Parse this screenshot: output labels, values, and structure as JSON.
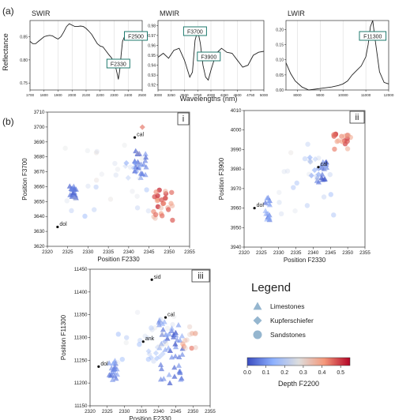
{
  "figure": {
    "panel_a_label": "(a)",
    "panel_b_label": "(b)",
    "a_ylabel": "Reflectance",
    "a_xlabel": "Wavelengths (nm)"
  },
  "legend": {
    "title": "Legend",
    "items": [
      {
        "label": "Limestones",
        "shape": "triangle"
      },
      {
        "label": "Kupferschiefer",
        "shape": "diamond"
      },
      {
        "label": "Sandstones",
        "shape": "circle"
      }
    ]
  },
  "colorbar": {
    "label": "Depth F2200",
    "ticks": [
      "0.0",
      "0.1",
      "0.2",
      "0.3",
      "0.4",
      "0.5"
    ],
    "min": 0.0,
    "max": 0.55,
    "colors": [
      "#3a4cc0",
      "#8db0fe",
      "#dddddd",
      "#f4987a",
      "#b40426"
    ]
  },
  "chart_data": [
    {
      "type": "line",
      "title": "SWIR",
      "xlim": [
        1700,
        2500
      ],
      "ylim": [
        0.735,
        0.885
      ],
      "xticks": [
        "1700",
        "1800",
        "1900",
        "2000",
        "2100",
        "2200",
        "2300",
        "2400",
        "2500"
      ],
      "yticks": [
        "0.75",
        "0.80",
        "0.85"
      ],
      "x": [
        1700,
        1720,
        1740,
        1760,
        1780,
        1800,
        1820,
        1840,
        1860,
        1880,
        1900,
        1920,
        1940,
        1960,
        1980,
        2000,
        2020,
        2040,
        2060,
        2080,
        2100,
        2120,
        2140,
        2160,
        2180,
        2200,
        2220,
        2240,
        2260,
        2280,
        2300,
        2310,
        2320,
        2330,
        2340,
        2350,
        2360,
        2380,
        2400,
        2420,
        2440,
        2460,
        2480,
        2500
      ],
      "y": [
        0.84,
        0.835,
        0.835,
        0.84,
        0.845,
        0.85,
        0.852,
        0.853,
        0.852,
        0.848,
        0.845,
        0.85,
        0.86,
        0.872,
        0.878,
        0.875,
        0.872,
        0.872,
        0.873,
        0.872,
        0.868,
        0.862,
        0.855,
        0.845,
        0.835,
        0.83,
        0.828,
        0.82,
        0.812,
        0.805,
        0.795,
        0.785,
        0.772,
        0.758,
        0.778,
        0.812,
        0.84,
        0.855,
        0.856,
        0.854,
        0.85,
        0.846,
        0.845,
        0.848
      ],
      "annotations": [
        {
          "label": "F2330",
          "x": 2330
        },
        {
          "label": "F2500",
          "x": 2500
        }
      ]
    },
    {
      "type": "line",
      "title": "MWIR",
      "xlim": [
        3000,
        5000
      ],
      "ylim": [
        0.915,
        0.985
      ],
      "xticks": [
        "3000",
        "3250",
        "3500",
        "3750",
        "4000",
        "4250",
        "4500",
        "4750",
        "5000"
      ],
      "yticks": [
        "0.92",
        "0.93",
        "0.94",
        "0.95",
        "0.96",
        "0.97",
        "0.98"
      ],
      "x": [
        3000,
        3100,
        3200,
        3300,
        3400,
        3500,
        3600,
        3650,
        3700,
        3750,
        3800,
        3850,
        3900,
        3950,
        4000,
        4100,
        4200,
        4300,
        4400,
        4500,
        4600,
        4700,
        4800,
        4900,
        5000
      ],
      "y": [
        0.948,
        0.952,
        0.947,
        0.955,
        0.957,
        0.945,
        0.928,
        0.933,
        0.965,
        0.975,
        0.962,
        0.94,
        0.928,
        0.925,
        0.935,
        0.952,
        0.957,
        0.953,
        0.952,
        0.945,
        0.938,
        0.94,
        0.95,
        0.953,
        0.954
      ],
      "annotations": [
        {
          "label": "F3700",
          "x": 3700
        },
        {
          "label": "F3900",
          "x": 3900
        }
      ]
    },
    {
      "type": "line",
      "title": "LWIR",
      "xlim": [
        7500,
        12000
      ],
      "ylim": [
        0.0,
        0.23
      ],
      "xticks": [
        "8000",
        "9000",
        "10000",
        "11000",
        "12000"
      ],
      "yticks": [
        "0.00",
        "0.05",
        "0.10",
        "0.15",
        "0.20"
      ],
      "x": [
        7500,
        7700,
        7900,
        8200,
        8500,
        9000,
        9500,
        9800,
        10000,
        10200,
        10400,
        10600,
        10800,
        11000,
        11100,
        11200,
        11300,
        11400,
        11600,
        11800,
        12000
      ],
      "y": [
        0.09,
        0.055,
        0.03,
        0.01,
        0.0,
        0.005,
        0.01,
        0.015,
        0.02,
        0.03,
        0.05,
        0.065,
        0.08,
        0.11,
        0.15,
        0.21,
        0.23,
        0.17,
        0.06,
        0.025,
        0.02
      ],
      "annotations": [
        {
          "label": "F11300",
          "x": 11300
        }
      ]
    },
    {
      "type": "scatter",
      "panel": "i",
      "xlabel": "Position F2330",
      "ylabel": "Position F3700",
      "xlim": [
        2320,
        2355
      ],
      "ylim": [
        3620,
        3710
      ],
      "xticks": [
        "2320",
        "2325",
        "2330",
        "2335",
        "2340",
        "2345",
        "2350",
        "2355"
      ],
      "yticks": [
        "3620",
        "3630",
        "3640",
        "3650",
        "3660",
        "3670",
        "3680",
        "3690",
        "3700",
        "3710"
      ],
      "reference_points": [
        {
          "label": "cal",
          "x": 2341.5,
          "y": 3693
        },
        {
          "label": "dol",
          "x": 2322.5,
          "y": 3633
        }
      ],
      "groups": [
        {
          "name": "Limestones",
          "shape": "triangle",
          "x_range": [
            2325.5,
            2327.2
          ],
          "y_range": [
            3652,
            3661
          ],
          "depth_range": [
            0.02,
            0.08
          ],
          "count": 18
        },
        {
          "name": "Limestones",
          "shape": "triangle",
          "x_range": [
            2341.5,
            2344.5
          ],
          "y_range": [
            3666,
            3684
          ],
          "depth_range": [
            0.02,
            0.1
          ],
          "count": 22
        },
        {
          "name": "Kupferschiefer",
          "shape": "diamond",
          "x_range": [
            2339,
            2343
          ],
          "y_range": [
            3663,
            3677
          ],
          "depth_range": [
            0.1,
            0.25
          ],
          "count": 10
        },
        {
          "name": "Kupferschiefer",
          "shape": "diamond",
          "x_range": [
            2343,
            2344.5
          ],
          "y_range": [
            3697,
            3701
          ],
          "depth_range": [
            0.4,
            0.45
          ],
          "count": 1
        },
        {
          "name": "Sandstones",
          "shape": "circle",
          "x_range": [
            2346,
            2351
          ],
          "y_range": [
            3637,
            3658
          ],
          "depth_range": [
            0.35,
            0.5
          ],
          "count": 28
        },
        {
          "name": "Sandstones",
          "shape": "circle",
          "x_range": [
            2322,
            2345
          ],
          "y_range": [
            3640,
            3690
          ],
          "depth_range": [
            0.15,
            0.3
          ],
          "count": 26
        }
      ]
    },
    {
      "type": "scatter",
      "panel": "ii",
      "xlabel": "Position F2330",
      "ylabel": "Position F3900",
      "xlim": [
        2320,
        2355
      ],
      "ylim": [
        3940,
        4010
      ],
      "xticks": [
        "2320",
        "2325",
        "2330",
        "2335",
        "2340",
        "2345",
        "2350",
        "2355"
      ],
      "yticks": [
        "3940",
        "3950",
        "3960",
        "3970",
        "3980",
        "3990",
        "4000",
        "4010"
      ],
      "reference_points": [
        {
          "label": "cal",
          "x": 2341.5,
          "y": 3981
        },
        {
          "label": "dol",
          "x": 2323,
          "y": 3960
        }
      ],
      "groups": [
        {
          "name": "Limestones",
          "shape": "triangle",
          "x_range": [
            2326,
            2327.5
          ],
          "y_range": [
            3954,
            3968
          ],
          "depth_range": [
            0.05,
            0.15
          ],
          "count": 16
        },
        {
          "name": "Limestones",
          "shape": "triangle",
          "x_range": [
            2341,
            2344
          ],
          "y_range": [
            3973,
            3984
          ],
          "depth_range": [
            0.02,
            0.1
          ],
          "count": 18
        },
        {
          "name": "Kupferschiefer",
          "shape": "diamond",
          "x_range": [
            2339,
            2343
          ],
          "y_range": [
            3976,
            3986
          ],
          "depth_range": [
            0.1,
            0.2
          ],
          "count": 8
        },
        {
          "name": "Sandstones",
          "shape": "circle",
          "x_range": [
            2345,
            2351
          ],
          "y_range": [
            3990,
            3999
          ],
          "depth_range": [
            0.35,
            0.5
          ],
          "count": 18
        },
        {
          "name": "Sandstones",
          "shape": "circle",
          "x_range": [
            2328,
            2346
          ],
          "y_range": [
            3955,
            3994
          ],
          "depth_range": [
            0.15,
            0.3
          ],
          "count": 24
        }
      ]
    },
    {
      "type": "scatter",
      "panel": "iii",
      "xlabel": "Position F2330",
      "ylabel": "Position F11300",
      "xlim": [
        2320,
        2355
      ],
      "ylim": [
        11150,
        11450
      ],
      "xticks": [
        "2320",
        "2325",
        "2330",
        "2335",
        "2340",
        "2345",
        "2350",
        "2355"
      ],
      "yticks": [
        "11150",
        "11200",
        "11250",
        "11300",
        "11350",
        "11400",
        "11450"
      ],
      "reference_points": [
        {
          "label": "sid",
          "x": 2338,
          "y": 11427
        },
        {
          "label": "cal",
          "x": 2342,
          "y": 11344
        },
        {
          "label": "ank",
          "x": 2335.5,
          "y": 11291
        },
        {
          "label": "dol",
          "x": 2322.5,
          "y": 11236
        }
      ],
      "groups": [
        {
          "name": "Limestones",
          "shape": "triangle",
          "x_range": [
            2325.5,
            2328
          ],
          "y_range": [
            11205,
            11250
          ],
          "depth_range": [
            0.05,
            0.12
          ],
          "count": 20
        },
        {
          "name": "Limestones",
          "shape": "triangle",
          "x_range": [
            2340,
            2347
          ],
          "y_range": [
            11200,
            11340
          ],
          "depth_range": [
            0.02,
            0.12
          ],
          "count": 46
        },
        {
          "name": "Kupferschiefer",
          "shape": "diamond",
          "x_range": [
            2337,
            2343
          ],
          "y_range": [
            11250,
            11300
          ],
          "depth_range": [
            0.1,
            0.25
          ],
          "count": 10
        },
        {
          "name": "Sandstones",
          "shape": "circle",
          "x_range": [
            2347,
            2351
          ],
          "y_range": [
            11275,
            11325
          ],
          "depth_range": [
            0.3,
            0.45
          ],
          "count": 12
        },
        {
          "name": "Sandstones",
          "shape": "circle",
          "x_range": [
            2328,
            2345
          ],
          "y_range": [
            11240,
            11360
          ],
          "depth_range": [
            0.15,
            0.3
          ],
          "count": 24
        }
      ]
    }
  ]
}
